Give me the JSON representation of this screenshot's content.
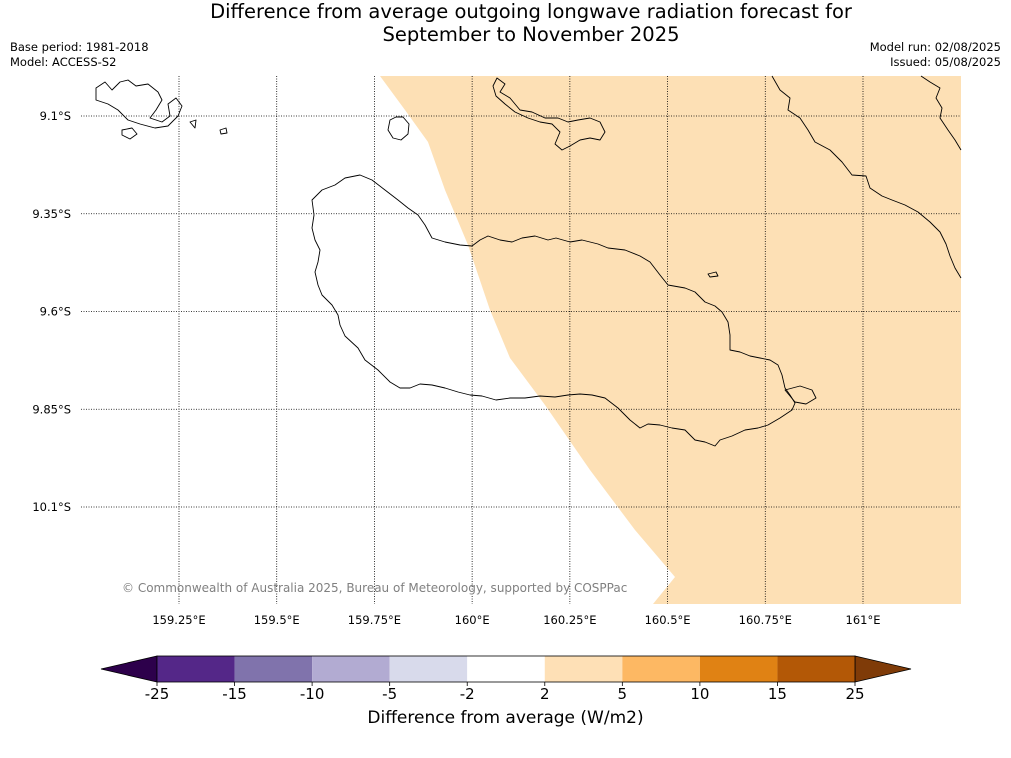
{
  "title": {
    "line1": "Difference from average outgoing longwave radiation forecast for",
    "line2": "September to November 2025"
  },
  "meta": {
    "base_period": "Base period: 1981-2018",
    "model": "Model: ACCESS-S2",
    "model_run": "Model run: 02/08/2025",
    "issued": "Issued: 05/08/2025"
  },
  "copyright": "© Commonwealth of Australia 2025, Bureau of Meteorology, supported by COSPPac",
  "map": {
    "lon_range": [
      159.0,
      161.25
    ],
    "lat_range": [
      -10.35,
      -9.0
    ],
    "lon_ticks": [
      {
        "value": 159.25,
        "label": "159.25°E"
      },
      {
        "value": 159.5,
        "label": "159.5°E"
      },
      {
        "value": 159.75,
        "label": "159.75°E"
      },
      {
        "value": 160.0,
        "label": "160°E"
      },
      {
        "value": 160.25,
        "label": "160.25°E"
      },
      {
        "value": 160.5,
        "label": "160.5°E"
      },
      {
        "value": 160.75,
        "label": "160.75°E"
      },
      {
        "value": 161.0,
        "label": "161°E"
      }
    ],
    "lat_ticks": [
      {
        "value": -9.1,
        "label": "9.1°S"
      },
      {
        "value": -9.35,
        "label": "9.35°S"
      },
      {
        "value": -9.6,
        "label": "9.6°S"
      },
      {
        "value": -9.85,
        "label": "9.85°S"
      },
      {
        "value": -10.1,
        "label": "10.1°S"
      }
    ],
    "gridlines": "dotted",
    "anomaly_fill_color": "#fde0b5",
    "anomaly_range": "2 to 5"
  },
  "colorbar": {
    "label": "Difference from average (W/m2)",
    "boundaries": [
      "-25",
      "-15",
      "-10",
      "-5",
      "-2",
      "2",
      "5",
      "10",
      "15",
      "25"
    ],
    "under_color": "#2d004b",
    "over_color": "#7f3b08",
    "colors": [
      "#542788",
      "#8073ac",
      "#b2abd2",
      "#d8daeb",
      "#ffffff",
      "#fee0b6",
      "#fdb863",
      "#e08214",
      "#b35806"
    ]
  }
}
